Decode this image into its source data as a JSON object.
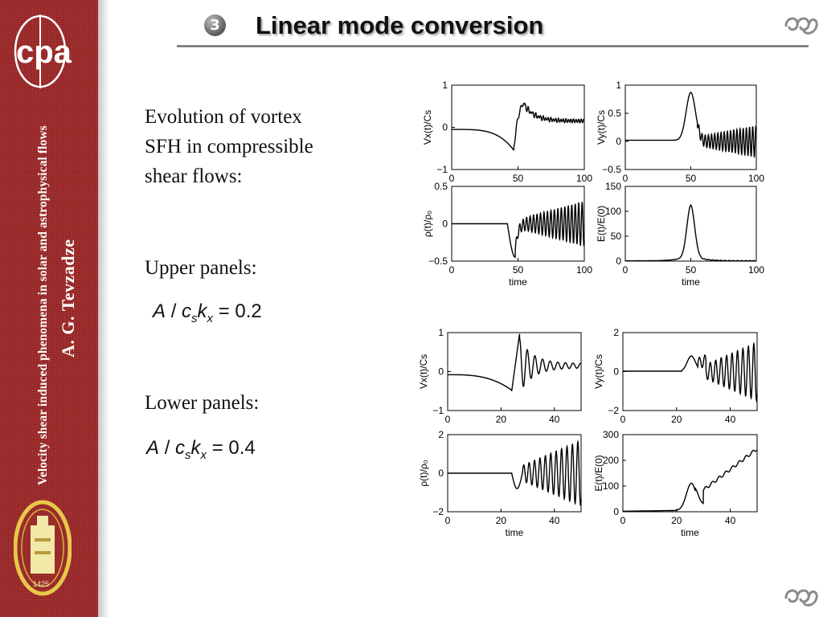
{
  "header": {
    "number_glyph": "3",
    "title": "Linear mode conversion"
  },
  "sidebar": {
    "logo_letters": "cpa",
    "vertical_title": "Velocity shear induced phenomena in solar and astrophysical flows",
    "author": "A. G. Tevzadze",
    "seal_year": "1425"
  },
  "text": {
    "intro_line1": "Evolution of vortex",
    "intro_line2": "SFH in compressible",
    "intro_line3": "shear flows:",
    "upper_label": "Upper panels:",
    "lower_label": "Lower panels:",
    "formula_upper": {
      "A": "A",
      "slash": "/",
      "c": "c",
      "s": "s",
      "k": "k",
      "x": "x",
      "rest": " = 0.2"
    },
    "formula_lower": {
      "A": "A",
      "slash": "/",
      "c": "c",
      "s": "s",
      "k": "k",
      "x": "x",
      "rest": " = 0.4"
    }
  },
  "colors": {
    "sidebar_red": "#9e2626",
    "line": "#000000"
  },
  "chart_data": [
    {
      "type": "line",
      "ylabel": "Vx(t)/Cs",
      "xlabel": "",
      "xlim": [
        0,
        100
      ],
      "ylim": [
        -1,
        1
      ],
      "xticks": [
        "0",
        "50",
        "100"
      ],
      "yticks": [
        "1",
        "0",
        "−1"
      ],
      "xtick_values": [
        0,
        50,
        100
      ],
      "ytick_values": [
        1,
        0,
        -1
      ]
    },
    {
      "type": "line",
      "ylabel": "Vy(t)/Cs",
      "xlabel": "",
      "xlim": [
        0,
        100
      ],
      "ylim": [
        -0.5,
        1
      ],
      "xticks": [
        "0",
        "50",
        "100"
      ],
      "yticks": [
        "1",
        "0.5",
        "0",
        "−0.5"
      ],
      "xtick_values": [
        0,
        50,
        100
      ],
      "ytick_values": [
        1,
        0.5,
        0,
        -0.5
      ]
    },
    {
      "type": "line",
      "ylabel": "ρ(t)/ρ₀",
      "xlabel": "time",
      "xlim": [
        0,
        100
      ],
      "ylim": [
        -0.5,
        0.5
      ],
      "xticks": [
        "0",
        "50",
        "100"
      ],
      "yticks": [
        "0.5",
        "0",
        "−0.5"
      ],
      "xtick_values": [
        0,
        50,
        100
      ],
      "ytick_values": [
        0.5,
        0,
        -0.5
      ]
    },
    {
      "type": "line",
      "ylabel": "E(t)/E(0)",
      "xlabel": "time",
      "xlim": [
        0,
        100
      ],
      "ylim": [
        0,
        150
      ],
      "xticks": [
        "0",
        "50",
        "100"
      ],
      "yticks": [
        "150",
        "100",
        "50",
        "0"
      ],
      "xtick_values": [
        0,
        50,
        100
      ],
      "ytick_values": [
        150,
        100,
        50,
        0
      ]
    },
    {
      "type": "line",
      "ylabel": "Vx(t)/Cs",
      "xlabel": "",
      "xlim": [
        0,
        50
      ],
      "ylim": [
        -1,
        1
      ],
      "xticks": [
        "0",
        "20",
        "40"
      ],
      "yticks": [
        "1",
        "0",
        "−1"
      ],
      "xtick_values": [
        0,
        20,
        40
      ],
      "ytick_values": [
        1,
        0,
        -1
      ]
    },
    {
      "type": "line",
      "ylabel": "Vy(t)/Cs",
      "xlabel": "",
      "xlim": [
        0,
        50
      ],
      "ylim": [
        -2,
        2
      ],
      "xticks": [
        "0",
        "20",
        "40"
      ],
      "yticks": [
        "2",
        "0",
        "−2"
      ],
      "xtick_values": [
        0,
        20,
        40
      ],
      "ytick_values": [
        2,
        0,
        -2
      ]
    },
    {
      "type": "line",
      "ylabel": "ρ(t)/ρ₀",
      "xlabel": "time",
      "xlim": [
        0,
        50
      ],
      "ylim": [
        -2,
        2
      ],
      "xticks": [
        "0",
        "20",
        "40"
      ],
      "yticks": [
        "2",
        "0",
        "−2"
      ],
      "xtick_values": [
        0,
        20,
        40
      ],
      "ytick_values": [
        2,
        0,
        -2
      ]
    },
    {
      "type": "line",
      "ylabel": "E(t)/E(0)",
      "xlabel": "time",
      "xlim": [
        0,
        50
      ],
      "ylim": [
        0,
        300
      ],
      "xticks": [
        "0",
        "20",
        "40"
      ],
      "yticks": [
        "300",
        "200",
        "100",
        "0"
      ],
      "xtick_values": [
        0,
        20,
        40
      ],
      "ytick_values": [
        300,
        200,
        100,
        0
      ]
    }
  ]
}
